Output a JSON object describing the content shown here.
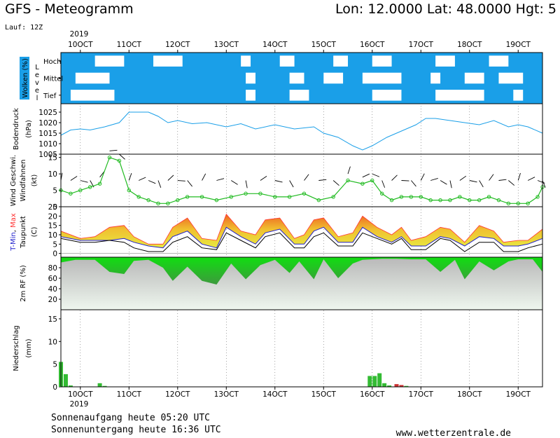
{
  "header": {
    "title": "GFS - Meteogramm",
    "location": "Lon: 12.0000 Lat: 48.0000 Hgt: 5",
    "run": "Lauf: 12Z"
  },
  "timeline": {
    "year": "2019",
    "days": [
      "10OCT",
      "11OCT",
      "12OCT",
      "13OCT",
      "14OCT",
      "15OCT",
      "16OCT",
      "17OCT",
      "18OCT",
      "19OCT"
    ]
  },
  "footer": {
    "sunrise": "Sonnenaufgang heute 05:20 UTC",
    "sunset": "Sonnenuntergang heute 16:36 UTC",
    "site": "www.wetterzentrale.de"
  },
  "colors": {
    "cloud_bg": "#1a9fe8",
    "pressure": "#1a9fe8",
    "wind": "#22bb22",
    "tmax": "#ff3333",
    "tmin": "#2222cc",
    "humidity": "#11cc11",
    "precip": "#33bb33"
  },
  "chart_data": [
    {
      "type": "heatmap",
      "panel": "clouds",
      "ylabel": "Wolken (%)",
      "ylabel2": "Level",
      "levels": [
        "Hoch",
        "Mittel",
        "Tief"
      ],
      "x_days": [
        9.6,
        19.5
      ],
      "clear_patches": [
        {
          "level": "Hoch",
          "from": 10.3,
          "to": 10.9
        },
        {
          "level": "Hoch",
          "from": 11.5,
          "to": 12.1
        },
        {
          "level": "Hoch",
          "from": 13.3,
          "to": 13.5
        },
        {
          "level": "Hoch",
          "from": 14.1,
          "to": 14.4
        },
        {
          "level": "Hoch",
          "from": 15.2,
          "to": 15.5
        },
        {
          "level": "Hoch",
          "from": 16.0,
          "to": 16.4
        },
        {
          "level": "Hoch",
          "from": 17.3,
          "to": 17.7
        },
        {
          "level": "Hoch",
          "from": 18.4,
          "to": 18.8
        },
        {
          "level": "Mittel",
          "from": 9.9,
          "to": 10.6
        },
        {
          "level": "Mittel",
          "from": 13.4,
          "to": 13.6
        },
        {
          "level": "Mittel",
          "from": 14.3,
          "to": 14.6
        },
        {
          "level": "Mittel",
          "from": 15.0,
          "to": 15.4
        },
        {
          "level": "Mittel",
          "from": 15.8,
          "to": 16.6
        },
        {
          "level": "Mittel",
          "from": 17.2,
          "to": 17.4
        },
        {
          "level": "Mittel",
          "from": 17.9,
          "to": 18.3
        },
        {
          "level": "Mittel",
          "from": 18.6,
          "to": 19.1
        },
        {
          "level": "Tief",
          "from": 9.8,
          "to": 10.7
        },
        {
          "level": "Tief",
          "from": 13.4,
          "to": 13.6
        },
        {
          "level": "Tief",
          "from": 14.3,
          "to": 14.7
        },
        {
          "level": "Tief",
          "from": 16.0,
          "to": 16.6
        },
        {
          "level": "Tief",
          "from": 17.3,
          "to": 18.3
        },
        {
          "level": "Tief",
          "from": 18.9,
          "to": 19.1
        }
      ]
    },
    {
      "type": "line",
      "panel": "pressure",
      "ylabel": "Bodendruck",
      "ylabel2": "(hPa)",
      "yticks": [
        1005,
        1010,
        1015,
        1020,
        1025
      ],
      "ylim": [
        1005,
        1029
      ],
      "x": [
        9.6,
        9.8,
        10.0,
        10.2,
        10.5,
        10.8,
        11.0,
        11.2,
        11.4,
        11.6,
        11.8,
        12.0,
        12.3,
        12.6,
        13.0,
        13.3,
        13.6,
        14.0,
        14.4,
        14.8,
        15.0,
        15.3,
        15.6,
        15.8,
        16.0,
        16.3,
        16.6,
        16.9,
        17.1,
        17.3,
        17.6,
        17.9,
        18.2,
        18.5,
        18.8,
        19.0,
        19.2,
        19.5
      ],
      "values": [
        1014,
        1016.5,
        1017,
        1016.5,
        1018,
        1020,
        1025,
        1025,
        1025,
        1023,
        1020,
        1021,
        1019.5,
        1020,
        1018,
        1019.5,
        1017,
        1019,
        1017,
        1018,
        1015,
        1013,
        1009,
        1007,
        1009,
        1013,
        1016,
        1019,
        1022,
        1022,
        1021,
        1020,
        1019,
        1021,
        1018,
        1019,
        1018,
        1015
      ]
    },
    {
      "type": "line",
      "panel": "wind",
      "ylabel": "Wind Geschwi.",
      "ylabel2": "Windfahnen",
      "ylabel3": "(kt)",
      "yticks": [
        0,
        5,
        10,
        15
      ],
      "ylim": [
        0,
        16
      ],
      "x": [
        9.6,
        9.8,
        10.0,
        10.2,
        10.4,
        10.6,
        10.8,
        11.0,
        11.2,
        11.4,
        11.6,
        11.8,
        12.0,
        12.2,
        12.5,
        12.8,
        13.1,
        13.4,
        13.7,
        14.0,
        14.3,
        14.6,
        14.9,
        15.2,
        15.5,
        15.8,
        16.0,
        16.2,
        16.4,
        16.6,
        16.8,
        17.0,
        17.2,
        17.4,
        17.6,
        17.8,
        18.0,
        18.2,
        18.4,
        18.6,
        18.8,
        19.0,
        19.2,
        19.4,
        19.5
      ],
      "values": [
        5,
        4,
        5,
        6,
        7,
        15,
        14,
        5,
        3,
        2,
        1,
        1,
        2,
        3,
        3,
        2,
        3,
        4,
        4,
        3,
        3,
        4,
        2,
        3,
        8,
        7,
        8,
        4,
        2,
        3,
        3,
        3,
        2,
        2,
        2,
        3,
        2,
        2,
        3,
        2,
        1,
        1,
        1,
        3,
        6
      ]
    },
    {
      "type": "area",
      "panel": "temperature",
      "ylabel": "T-Min, Max",
      "ylabel2": "Taupunkt",
      "ylabel3": "(C)",
      "yticks": [
        0,
        5,
        10,
        15,
        20,
        25
      ],
      "ylim": [
        -2,
        25
      ],
      "x": [
        9.6,
        10.0,
        10.3,
        10.6,
        10.9,
        11.1,
        11.4,
        11.7,
        11.9,
        12.2,
        12.5,
        12.8,
        13.0,
        13.3,
        13.6,
        13.8,
        14.1,
        14.4,
        14.6,
        14.8,
        15.0,
        15.3,
        15.6,
        15.8,
        16.1,
        16.4,
        16.6,
        16.8,
        17.1,
        17.4,
        17.6,
        17.9,
        18.2,
        18.5,
        18.7,
        19.0,
        19.2,
        19.5
      ],
      "series": [
        {
          "name": "T-Max",
          "values": [
            12,
            8,
            9,
            14,
            15,
            9,
            5,
            5,
            14,
            19,
            8,
            7,
            21,
            12,
            10,
            18,
            19,
            8,
            10,
            18,
            19,
            9,
            11,
            20,
            14,
            10,
            14,
            7,
            9,
            14,
            13,
            6,
            15,
            12,
            6,
            7,
            7,
            13
          ]
        },
        {
          "name": "T-Min",
          "values": [
            9,
            7,
            7,
            7,
            8,
            6,
            4,
            3,
            9,
            12,
            5,
            3,
            14,
            9,
            5,
            11,
            13,
            5,
            5,
            12,
            14,
            6,
            6,
            14,
            9,
            6,
            9,
            4,
            4,
            9,
            8,
            4,
            9,
            8,
            4,
            4,
            5,
            8
          ]
        },
        {
          "name": "Taupunkt",
          "values": [
            8,
            6,
            6,
            7,
            6,
            3,
            1,
            1,
            6,
            9,
            3,
            2,
            11,
            7,
            3,
            9,
            11,
            3,
            3,
            9,
            11,
            4,
            4,
            11,
            8,
            5,
            8,
            2,
            2,
            8,
            7,
            1,
            6,
            6,
            1,
            1,
            3,
            5
          ]
        }
      ]
    },
    {
      "type": "area",
      "panel": "humidity",
      "ylabel": "2m RF (%)",
      "yticks": [
        20,
        40,
        60,
        80
      ],
      "ylim": [
        0,
        100
      ],
      "x": [
        9.6,
        9.9,
        10.3,
        10.6,
        10.9,
        11.1,
        11.4,
        11.7,
        11.9,
        12.2,
        12.5,
        12.8,
        13.1,
        13.4,
        13.7,
        14.0,
        14.3,
        14.5,
        14.8,
        15.0,
        15.3,
        15.6,
        15.8,
        16.2,
        16.5,
        16.8,
        17.1,
        17.4,
        17.7,
        17.9,
        18.2,
        18.5,
        18.8,
        19.0,
        19.3,
        19.5
      ],
      "values": [
        90,
        95,
        95,
        72,
        68,
        93,
        95,
        80,
        55,
        82,
        55,
        48,
        88,
        58,
        85,
        95,
        70,
        92,
        58,
        96,
        60,
        88,
        95,
        97,
        97,
        96,
        96,
        72,
        95,
        58,
        92,
        75,
        92,
        96,
        96,
        72
      ]
    },
    {
      "type": "bar",
      "panel": "precipitation",
      "ylabel": "Niederschlag",
      "ylabel2": "(mm)",
      "yticks": [
        0,
        5,
        10,
        15
      ],
      "ylim": [
        0,
        17
      ],
      "x": [
        9.6,
        9.7,
        9.8,
        10.4,
        10.5,
        15.95,
        16.05,
        16.15,
        16.25,
        16.35,
        16.5,
        16.6,
        16.7
      ],
      "values": [
        5.5,
        2.8,
        0.3,
        0.8,
        0.2,
        2.4,
        2.4,
        3.0,
        0.8,
        0.3,
        0.6,
        0.4,
        0.2
      ]
    }
  ]
}
